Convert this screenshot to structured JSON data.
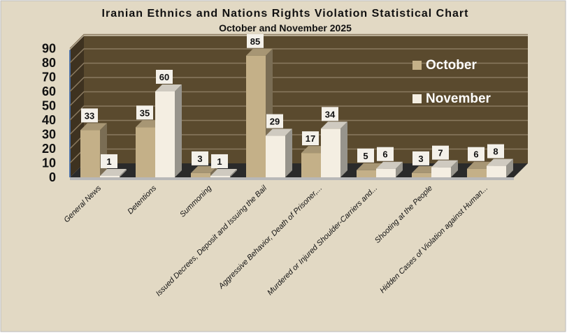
{
  "chart_data": {
    "type": "bar",
    "title": "Iranian Ethnics and Nations Rights Violation Statistical Chart",
    "subtitle": "October and November 2025",
    "categories": [
      "General News",
      "Detentions",
      "Summoning",
      "Issued Decrees, Deposit and Issuing the Bail",
      "Aggressive Behavior, Death of Prisoner,...",
      "Murdered or Injured Shoulder-Carriers and...",
      "Shooting at the People",
      "Hidden Cases of Violation against Human..."
    ],
    "series": [
      {
        "name": "October",
        "color": "#c4b088",
        "values": [
          33,
          35,
          3,
          85,
          17,
          5,
          3,
          6
        ]
      },
      {
        "name": "November",
        "color": "#f4eee2",
        "values": [
          1,
          60,
          1,
          29,
          34,
          6,
          7,
          8
        ]
      }
    ],
    "yticks": [
      0,
      10,
      20,
      30,
      40,
      50,
      60,
      70,
      80,
      90
    ],
    "ylim": [
      0,
      90
    ],
    "xlabel": "",
    "ylabel": "",
    "grid": true,
    "legend": "right",
    "colors": {
      "background": "#e2d9c4",
      "wall": "#5a4a2e",
      "floor": "#2a2a2a"
    }
  }
}
